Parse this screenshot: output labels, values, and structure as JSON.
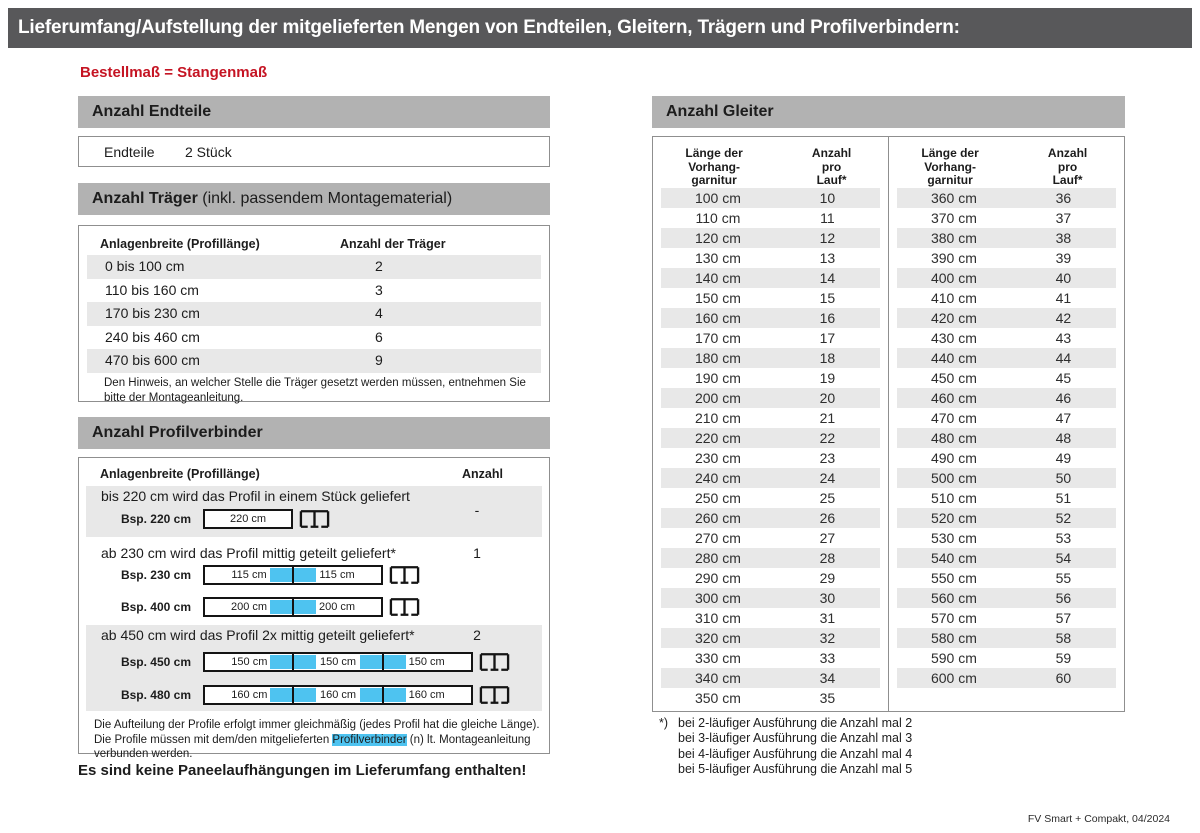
{
  "page": {
    "title": "Lieferumfang/Aufstellung der mitgelieferten Mengen von Endteilen, Gleitern, Trägern und Profilverbindern:",
    "subtitle": "Bestellmaß = Stangenmaß",
    "footer": "FV Smart + Compakt, 04/2024"
  },
  "colors": {
    "title_bar_bg": "#58585a",
    "section_bar_bg": "#b2b2b2",
    "row_stripe": "#e8e8e8",
    "accent_blue": "#4ec3f0",
    "accent_red": "#c51423",
    "box_border": "#8f8f8f"
  },
  "endteile": {
    "heading": "Anzahl Endteile",
    "label": "Endteile",
    "value": "2 Stück"
  },
  "traeger": {
    "heading_bold": "Anzahl Träger",
    "heading_rest": " (inkl. passendem Montagematerial)",
    "col_width": "Anlagenbreite (Profillänge)",
    "col_count": "Anzahl der Träger",
    "rows": [
      {
        "range": "0 bis 100 cm",
        "count": "2"
      },
      {
        "range": "110 bis 160 cm",
        "count": "3"
      },
      {
        "range": "170 bis 230 cm",
        "count": "4"
      },
      {
        "range": "240 bis 460 cm",
        "count": "6"
      },
      {
        "range": "470 bis 600 cm",
        "count": "9"
      }
    ],
    "note": "Den Hinweis, an welcher Stelle die Träger gesetzt werden müssen, entnehmen Sie bitte der Montageanleitung."
  },
  "profilverbinder": {
    "heading": "Anzahl Profilverbinder",
    "col_width": "Anlagenbreite (Profillänge)",
    "col_count": "Anzahl",
    "sections": [
      {
        "text": "bis 220 cm wird das Profil in einem Stück geliefert",
        "anzahl": "-",
        "examples": [
          {
            "label": "Bsp. 220 cm",
            "segments": [
              "220 cm"
            ]
          }
        ]
      },
      {
        "text": "ab 230 cm wird das Profil mittig geteilt geliefert*",
        "anzahl": "1",
        "examples": [
          {
            "label": "Bsp. 230 cm",
            "segments": [
              "115 cm",
              "115 cm"
            ]
          },
          {
            "label": "Bsp. 400 cm",
            "segments": [
              "200 cm",
              "200 cm"
            ]
          }
        ]
      },
      {
        "text": "ab 450 cm wird das Profil 2x mittig geteilt geliefert*",
        "anzahl": "2",
        "examples": [
          {
            "label": "Bsp. 450 cm",
            "segments": [
              "150 cm",
              "150 cm",
              "150 cm"
            ]
          },
          {
            "label": "Bsp. 480 cm",
            "segments": [
              "160 cm",
              "160 cm",
              "160 cm"
            ]
          }
        ]
      }
    ],
    "note_pre": "Die Aufteilung der Profile erfolgt immer gleichmäßig (jedes Profil hat die gleiche Länge). Die Profile müssen mit dem/den mitgelieferten ",
    "note_highlight": "Profilverbinder",
    "note_post": " (n) lt. Montageanleitung verbunden werden."
  },
  "closing_note": "Es sind keine Paneelaufhängungen im Lieferumfang enthalten!",
  "gleiter": {
    "heading": "Anzahl Gleiter",
    "col_length_lines": "Länge der\nVorhang-\ngarnitur",
    "col_count_lines": "Anzahl\npro\nLauf*",
    "left_rows": [
      {
        "length": "100 cm",
        "count": "10"
      },
      {
        "length": "110 cm",
        "count": "11"
      },
      {
        "length": "120 cm",
        "count": "12"
      },
      {
        "length": "130 cm",
        "count": "13"
      },
      {
        "length": "140 cm",
        "count": "14"
      },
      {
        "length": "150 cm",
        "count": "15"
      },
      {
        "length": "160 cm",
        "count": "16"
      },
      {
        "length": "170 cm",
        "count": "17"
      },
      {
        "length": "180 cm",
        "count": "18"
      },
      {
        "length": "190 cm",
        "count": "19"
      },
      {
        "length": "200 cm",
        "count": "20"
      },
      {
        "length": "210 cm",
        "count": "21"
      },
      {
        "length": "220 cm",
        "count": "22"
      },
      {
        "length": "230 cm",
        "count": "23"
      },
      {
        "length": "240 cm",
        "count": "24"
      },
      {
        "length": "250 cm",
        "count": "25"
      },
      {
        "length": "260 cm",
        "count": "26"
      },
      {
        "length": "270 cm",
        "count": "27"
      },
      {
        "length": "280 cm",
        "count": "28"
      },
      {
        "length": "290 cm",
        "count": "29"
      },
      {
        "length": "300 cm",
        "count": "30"
      },
      {
        "length": "310 cm",
        "count": "31"
      },
      {
        "length": "320 cm",
        "count": "32"
      },
      {
        "length": "330 cm",
        "count": "33"
      },
      {
        "length": "340 cm",
        "count": "34"
      },
      {
        "length": "350 cm",
        "count": "35"
      }
    ],
    "right_rows": [
      {
        "length": "360 cm",
        "count": "36"
      },
      {
        "length": "370 cm",
        "count": "37"
      },
      {
        "length": "380 cm",
        "count": "38"
      },
      {
        "length": "390 cm",
        "count": "39"
      },
      {
        "length": "400 cm",
        "count": "40"
      },
      {
        "length": "410 cm",
        "count": "41"
      },
      {
        "length": "420 cm",
        "count": "42"
      },
      {
        "length": "430 cm",
        "count": "43"
      },
      {
        "length": "440 cm",
        "count": "44"
      },
      {
        "length": "450 cm",
        "count": "45"
      },
      {
        "length": "460 cm",
        "count": "46"
      },
      {
        "length": "470 cm",
        "count": "47"
      },
      {
        "length": "480 cm",
        "count": "48"
      },
      {
        "length": "490 cm",
        "count": "49"
      },
      {
        "length": "500 cm",
        "count": "50"
      },
      {
        "length": "510 cm",
        "count": "51"
      },
      {
        "length": "520 cm",
        "count": "52"
      },
      {
        "length": "530 cm",
        "count": "53"
      },
      {
        "length": "540 cm",
        "count": "54"
      },
      {
        "length": "550 cm",
        "count": "55"
      },
      {
        "length": "560 cm",
        "count": "56"
      },
      {
        "length": "570 cm",
        "count": "57"
      },
      {
        "length": "580 cm",
        "count": "58"
      },
      {
        "length": "590 cm",
        "count": "59"
      },
      {
        "length": "600 cm",
        "count": "60"
      }
    ],
    "footnote_marker": "*)",
    "footnotes": [
      "bei 2-läufiger Ausführung die Anzahl mal 2",
      "bei 3-läufiger Ausführung die Anzahl mal 3",
      "bei 4-läufiger Ausführung die Anzahl mal 4",
      "bei 5-läufiger Ausführung die Anzahl mal 5"
    ]
  }
}
